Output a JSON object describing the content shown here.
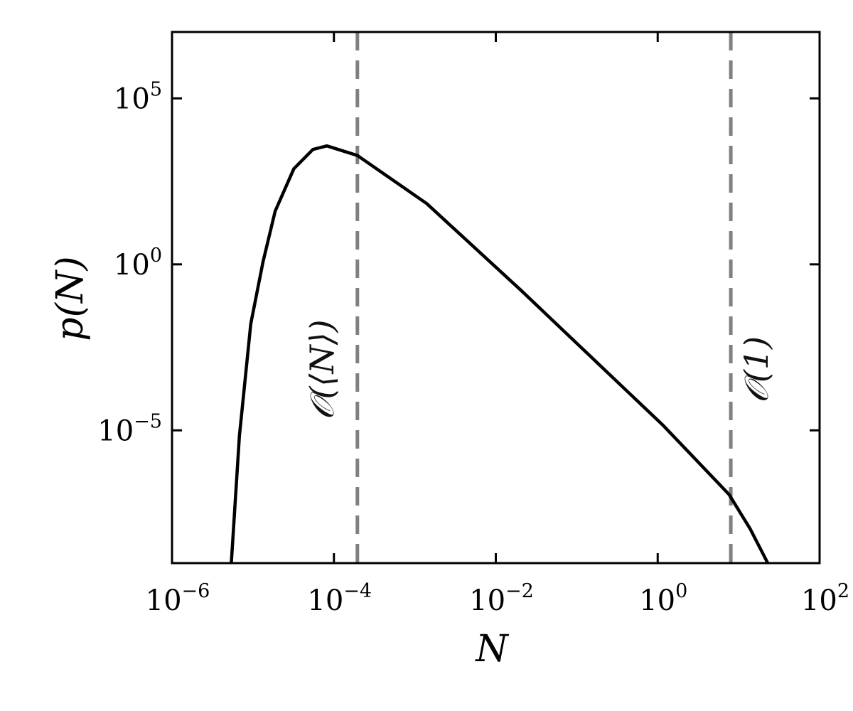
{
  "chart_data": {
    "type": "line",
    "title": "",
    "xlabel": "N",
    "ylabel": "p(N)",
    "xscale": "log",
    "yscale": "log",
    "xlim": [
      1e-06,
      100
    ],
    "ylim": [
      1e-09,
      10000000.0
    ],
    "grid": false,
    "x_ticks": [
      {
        "base": "10",
        "exp": "−6",
        "value": 1e-06
      },
      {
        "base": "10",
        "exp": "−4",
        "value": 0.0001
      },
      {
        "base": "10",
        "exp": "−2",
        "value": 0.01
      },
      {
        "base": "10",
        "exp": "0",
        "value": 1
      },
      {
        "base": "10",
        "exp": "2",
        "value": 100
      }
    ],
    "y_ticks": [
      {
        "base": "10",
        "exp": "−5",
        "value": 1e-05
      },
      {
        "base": "10",
        "exp": "0",
        "value": 1
      },
      {
        "base": "10",
        "exp": "5",
        "value": 100000.0
      }
    ],
    "series": [
      {
        "color": "#000000",
        "style": "solid",
        "x": [
          5.4e-06,
          6.8e-06,
          9.4e-06,
          1.33e-05,
          1.88e-05,
          3.2e-05,
          5.5e-05,
          8.2e-05,
          0.000195,
          0.0014,
          0.0204,
          1.17,
          7.6,
          13.8,
          22.9
        ],
        "y": [
          9.1e-10,
          6.8e-06,
          0.0162,
          1.19,
          40,
          760,
          2900,
          3700,
          1900,
          68,
          0.166,
          1.4e-05,
          1.17e-07,
          1.1e-08,
          1e-09
        ]
      }
    ],
    "vlines": [
      {
        "x": 0.000195,
        "color": "#808080",
        "style": "dashed",
        "label": "𝒪(⟨N⟩)"
      },
      {
        "x": 8.0,
        "color": "#808080",
        "style": "dashed",
        "label": "𝒪(1)"
      }
    ]
  }
}
